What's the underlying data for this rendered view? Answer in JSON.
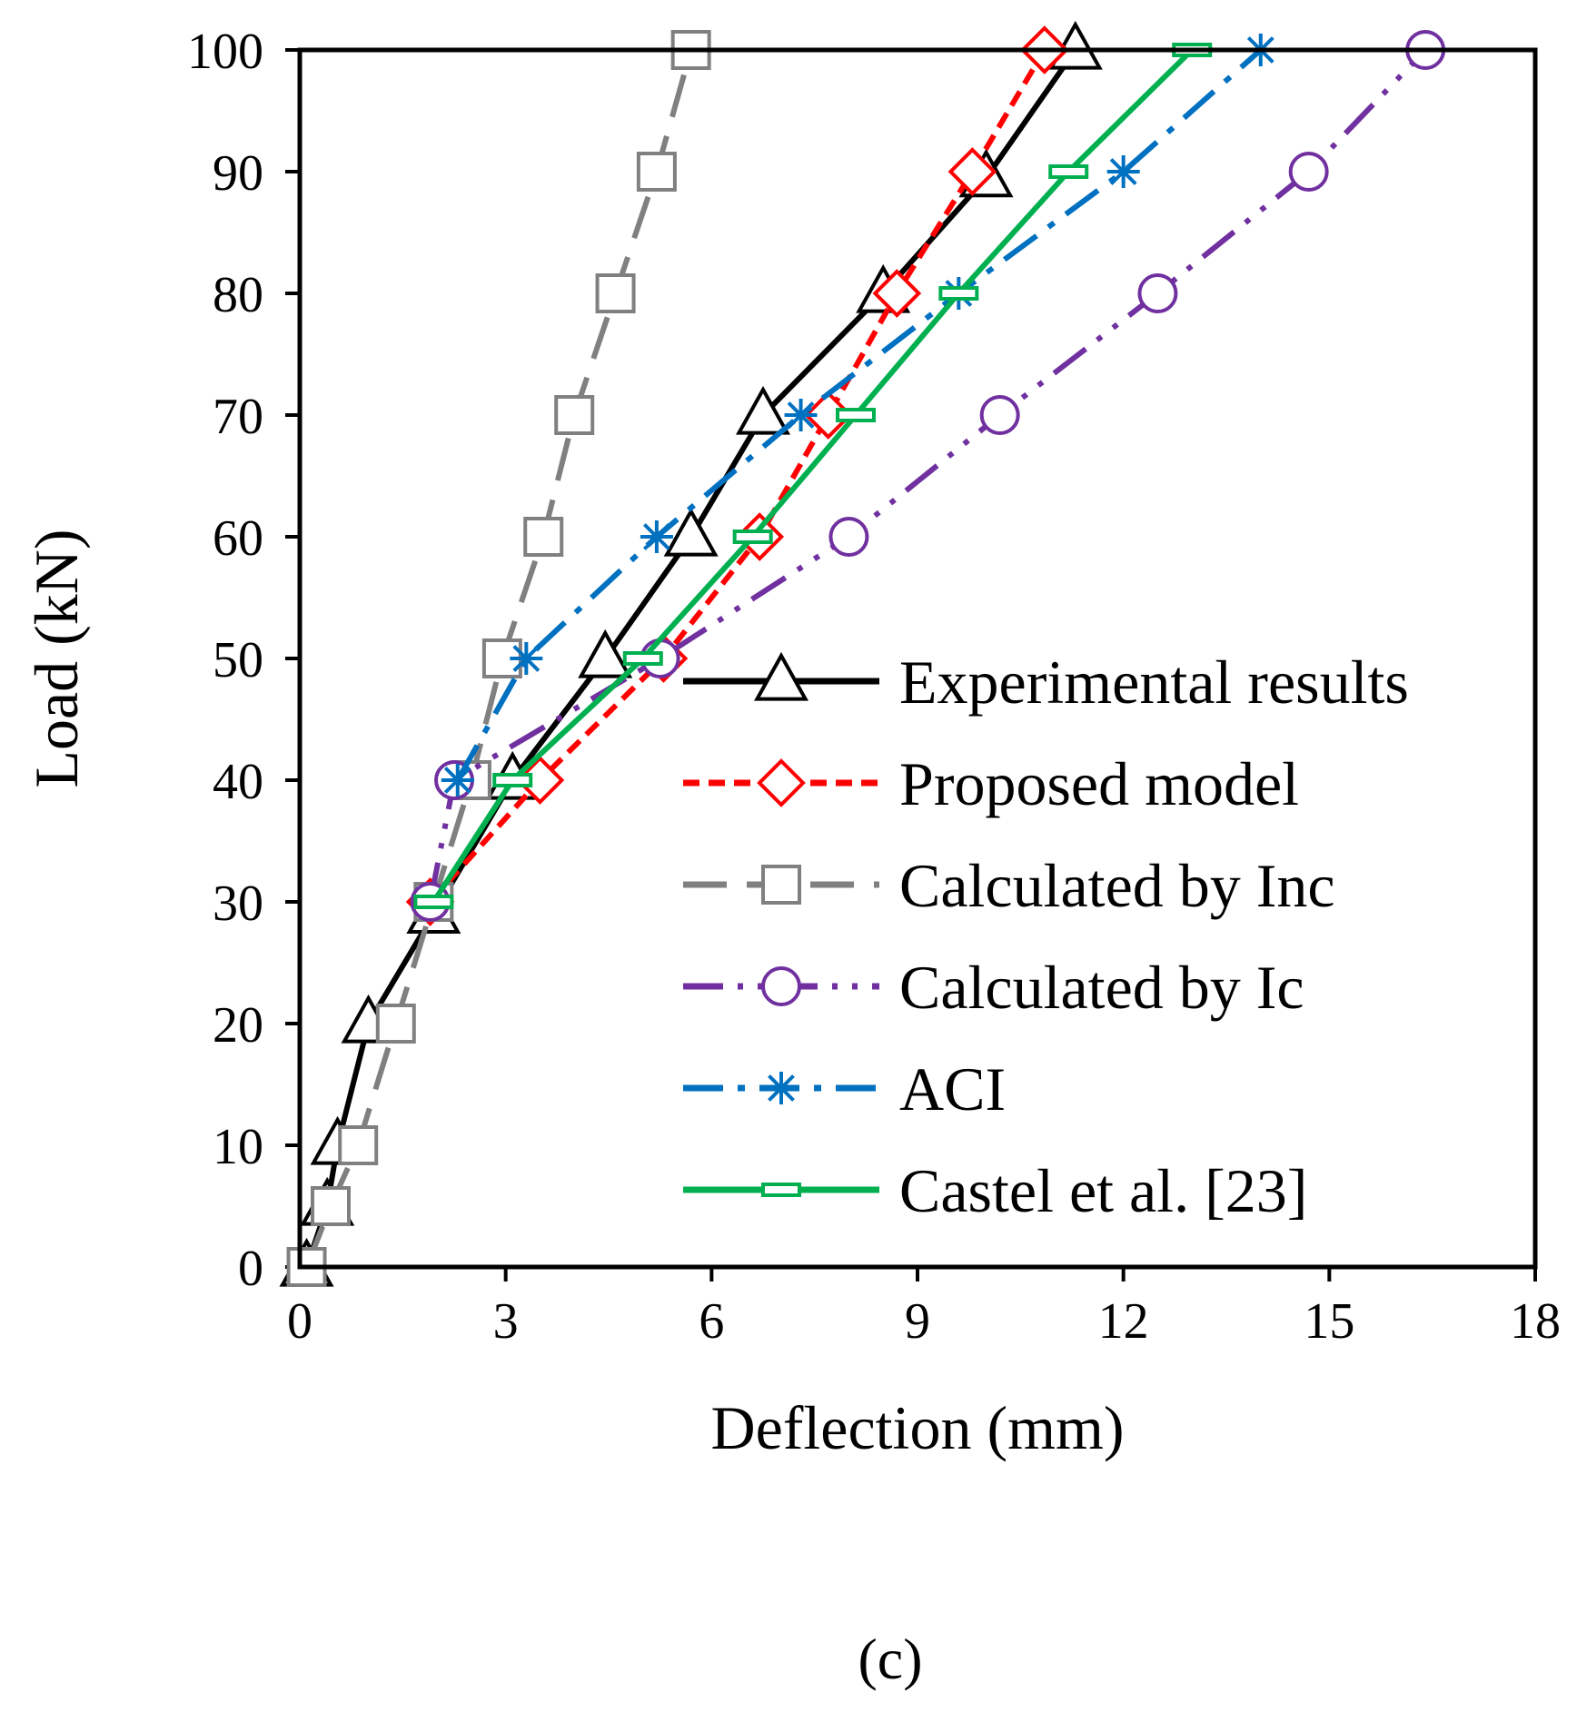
{
  "panel_label": "(c)",
  "chart_data": {
    "type": "line",
    "title": "",
    "xlabel": "Deflection (mm)",
    "ylabel": "Load (kN)",
    "xlim": [
      0,
      18
    ],
    "ylim": [
      0,
      100
    ],
    "xticks": [
      0,
      3,
      6,
      9,
      12,
      15,
      18
    ],
    "yticks": [
      0,
      10,
      20,
      30,
      40,
      50,
      60,
      70,
      80,
      90,
      100
    ],
    "grid": false,
    "legend_position": "bottom-right",
    "series": [
      {
        "name": "Experimental results",
        "color": "#000000",
        "marker": "triangle",
        "dash": "solid",
        "points": [
          [
            0.1,
            0
          ],
          [
            0.4,
            5
          ],
          [
            0.55,
            10
          ],
          [
            1.0,
            20
          ],
          [
            1.95,
            29
          ],
          [
            3.1,
            40
          ],
          [
            4.45,
            50
          ],
          [
            5.7,
            60
          ],
          [
            6.75,
            70
          ],
          [
            8.5,
            80
          ],
          [
            10.0,
            89.5
          ],
          [
            11.3,
            100
          ]
        ]
      },
      {
        "name": "Proposed model",
        "color": "#ff0000",
        "marker": "diamond",
        "dash": "dashed",
        "points": [
          [
            1.9,
            30
          ],
          [
            3.5,
            40
          ],
          [
            5.3,
            50
          ],
          [
            6.7,
            60
          ],
          [
            7.7,
            70
          ],
          [
            8.7,
            80
          ],
          [
            9.8,
            90
          ],
          [
            10.85,
            100
          ]
        ]
      },
      {
        "name": "Calculated by Inc",
        "color": "#808080",
        "marker": "square",
        "dash": "longdash",
        "points": [
          [
            0.1,
            0
          ],
          [
            0.45,
            5
          ],
          [
            0.85,
            10
          ],
          [
            1.4,
            20
          ],
          [
            1.95,
            30
          ],
          [
            2.5,
            40
          ],
          [
            2.95,
            50
          ],
          [
            3.55,
            60
          ],
          [
            4.0,
            70
          ],
          [
            4.6,
            80
          ],
          [
            5.2,
            90
          ],
          [
            5.7,
            100
          ]
        ]
      },
      {
        "name": "Calculated by Ic",
        "color": "#7030a0",
        "marker": "circle",
        "dash": "dashdotdot",
        "points": [
          [
            1.9,
            30
          ],
          [
            2.25,
            40
          ],
          [
            5.25,
            50
          ],
          [
            8.0,
            60
          ],
          [
            10.2,
            70
          ],
          [
            12.5,
            80
          ],
          [
            14.7,
            90
          ],
          [
            16.4,
            100
          ]
        ]
      },
      {
        "name": "ACI",
        "color": "#0070c0",
        "marker": "asterisk",
        "dash": "dashdot",
        "points": [
          [
            2.3,
            40
          ],
          [
            3.3,
            50
          ],
          [
            5.2,
            60
          ],
          [
            7.3,
            70
          ],
          [
            9.6,
            80
          ],
          [
            12.0,
            90
          ],
          [
            14.0,
            100
          ]
        ]
      },
      {
        "name": "Castel et al. [23]",
        "color": "#00b050",
        "marker": "dash",
        "dash": "solid",
        "points": [
          [
            1.95,
            30
          ],
          [
            3.1,
            40
          ],
          [
            5.0,
            50
          ],
          [
            6.6,
            60
          ],
          [
            8.1,
            70
          ],
          [
            9.6,
            80
          ],
          [
            11.2,
            90
          ],
          [
            13.0,
            100
          ]
        ]
      }
    ]
  }
}
